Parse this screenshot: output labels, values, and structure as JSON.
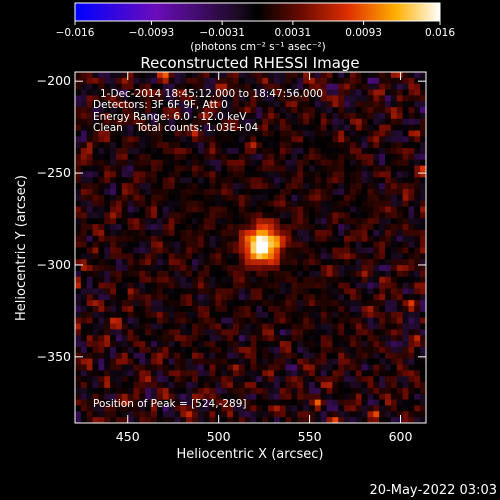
{
  "chart_data": {
    "type": "heatmap",
    "title": "Reconstructed RHESSI Image",
    "xlabel": "Heliocentric X (arcsec)",
    "ylabel": "Heliocentric Y (arcsec)",
    "xlim": [
      421,
      614
    ],
    "ylim": [
      -386,
      -195
    ],
    "x_ticks": [
      450,
      500,
      550,
      600
    ],
    "y_ticks": [
      -200,
      -250,
      -300,
      -350
    ],
    "x_tick_labels": [
      "450",
      "500",
      "550",
      "600"
    ],
    "y_tick_labels": [
      "−200",
      "−250",
      "−300",
      "−350"
    ],
    "colorbar": {
      "min": -0.016,
      "max": 0.016,
      "tick_values": [
        -0.016,
        -0.0093,
        -0.0031,
        0.0031,
        0.0093,
        0.016
      ],
      "tick_labels": [
        "−0.016",
        "−0.0093",
        "−0.0031",
        "0.0031",
        "0.0093",
        "0.016"
      ],
      "units_label": "(photons cm⁻² s⁻¹ asec⁻²)"
    },
    "annotations": [
      "1-Dec-2014 18:45:12.000 to 18:47:56.000",
      "Detectors: 3F 6F 9F, Att 0",
      "Energy Range: 6.0 - 12.0 keV",
      "Clean    Total counts: 1.03E+04"
    ],
    "peak_label": "Position of Peak = [524,-289]",
    "peak_position": [
      524,
      -289
    ],
    "source": {
      "x": 524,
      "y": -289,
      "peak_value": 0.016
    },
    "colormap": [
      "#0000ff",
      "#6a0dbb",
      "#20102a",
      "#000000",
      "#5a0a00",
      "#d02000",
      "#ff7a00",
      "#ffd000",
      "#ffffff"
    ]
  },
  "footer": {
    "timestamp": "20‐May‐2022 03:03"
  }
}
